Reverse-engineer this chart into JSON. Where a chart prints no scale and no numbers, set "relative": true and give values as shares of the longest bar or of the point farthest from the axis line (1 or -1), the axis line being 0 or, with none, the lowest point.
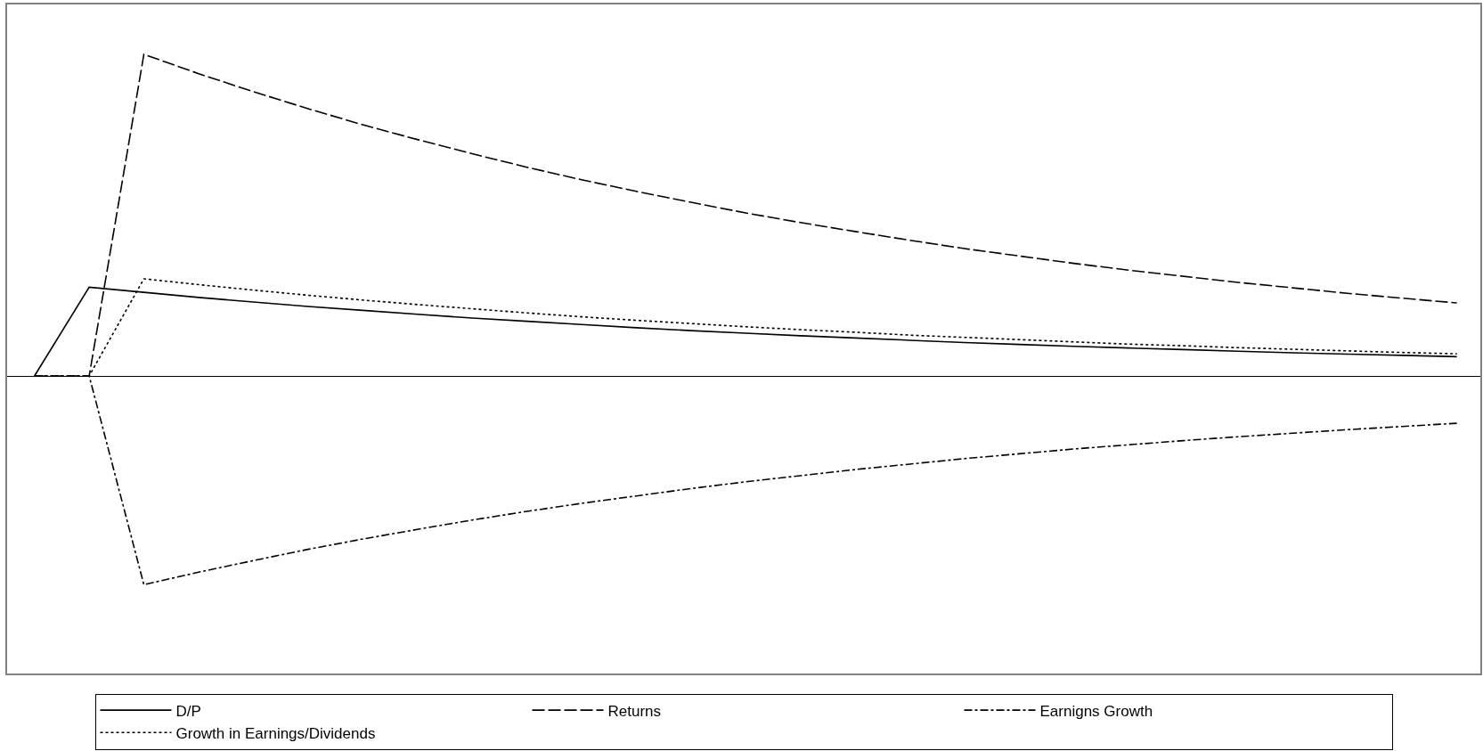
{
  "chart_data": {
    "type": "line",
    "relative": true,
    "categories": [
      null,
      null,
      null,
      null,
      null,
      null,
      null,
      null,
      null,
      null,
      null,
      null,
      null,
      null,
      null,
      null,
      null,
      null,
      null,
      null,
      null,
      null,
      null,
      null,
      null,
      null,
      null
    ],
    "series": [
      {
        "name": "D/P",
        "color": "#000000",
        "line_style": "solid",
        "values": [
          0,
          0.276,
          0.26,
          0.244,
          0.23,
          0.216,
          0.204,
          0.192,
          0.18,
          0.17,
          0.16,
          0.15,
          0.141,
          0.133,
          0.125,
          0.118,
          0.111,
          0.104,
          0.098,
          0.092,
          0.087,
          0.082,
          0.077,
          0.072,
          0.068,
          0.064,
          0.06
        ]
      },
      {
        "name": "Returns",
        "color": "#000000",
        "line_style": "dashed",
        "values": [
          0,
          0,
          1,
          0.94,
          0.884,
          0.831,
          0.781,
          0.735,
          0.691,
          0.649,
          0.61,
          0.574,
          0.54,
          0.507,
          0.477,
          0.449,
          0.422,
          0.396,
          0.373,
          0.35,
          0.329,
          0.31,
          0.291,
          0.274,
          0.257,
          0.242,
          0.227
        ]
      },
      {
        "name": "Earnigns Growth",
        "color": "#000000",
        "line_style": "dashdot",
        "values": [
          0,
          0,
          -0.649,
          -0.61,
          -0.574,
          -0.539,
          -0.507,
          -0.477,
          -0.448,
          -0.421,
          -0.396,
          -0.373,
          -0.35,
          -0.329,
          -0.31,
          -0.291,
          -0.274,
          -0.257,
          -0.242,
          -0.227,
          -0.214,
          -0.201,
          -0.189,
          -0.178,
          -0.167,
          -0.157,
          -0.147
        ]
      },
      {
        "name": "Growth in Earnings/Dividends",
        "color": "#000000",
        "line_style": "dotted",
        "values": [
          0,
          0,
          0.302,
          0.284,
          0.267,
          0.251,
          0.236,
          0.222,
          0.209,
          0.196,
          0.184,
          0.173,
          0.163,
          0.153,
          0.144,
          0.136,
          0.127,
          0.12,
          0.113,
          0.106,
          0.099,
          0.094,
          0.088,
          0.083,
          0.078,
          0.073,
          0.069
        ]
      }
    ],
    "legend": "bottom",
    "marker": "none"
  }
}
